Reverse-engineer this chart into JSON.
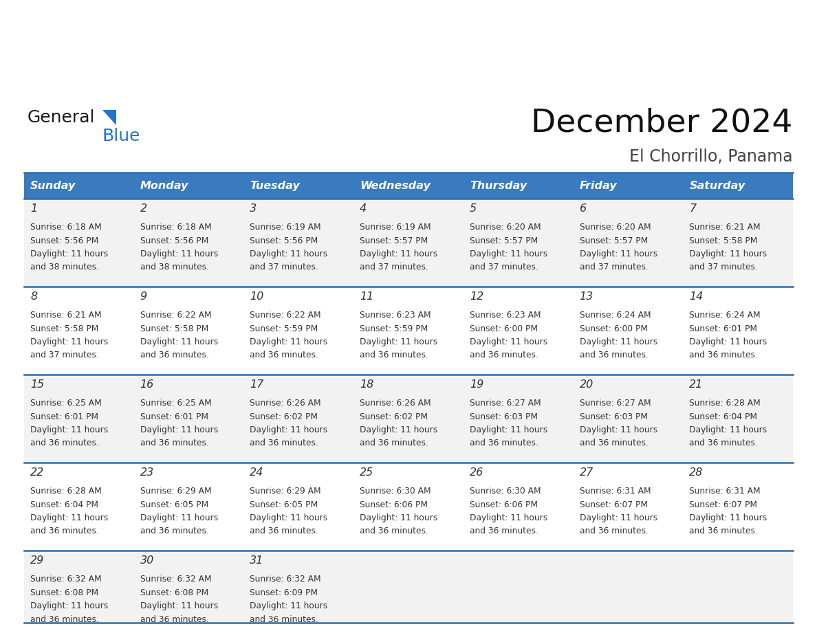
{
  "title": "December 2024",
  "subtitle": "El Chorrillo, Panama",
  "days_of_week": [
    "Sunday",
    "Monday",
    "Tuesday",
    "Wednesday",
    "Thursday",
    "Friday",
    "Saturday"
  ],
  "header_bg": "#3a7abf",
  "header_text": "#ffffff",
  "cell_bg_light": "#f2f2f2",
  "cell_bg_white": "#ffffff",
  "border_color": "#2e6da4",
  "text_color": "#333333",
  "logo_general_color": "#1a1a1a",
  "logo_blue_color": "#2176c7",
  "weeks": [
    [
      {
        "day": 1,
        "sunrise": "6:18 AM",
        "sunset": "5:56 PM",
        "daylight_h": "11 hours",
        "daylight_m": "and 38 minutes."
      },
      {
        "day": 2,
        "sunrise": "6:18 AM",
        "sunset": "5:56 PM",
        "daylight_h": "11 hours",
        "daylight_m": "and 38 minutes."
      },
      {
        "day": 3,
        "sunrise": "6:19 AM",
        "sunset": "5:56 PM",
        "daylight_h": "11 hours",
        "daylight_m": "and 37 minutes."
      },
      {
        "day": 4,
        "sunrise": "6:19 AM",
        "sunset": "5:57 PM",
        "daylight_h": "11 hours",
        "daylight_m": "and 37 minutes."
      },
      {
        "day": 5,
        "sunrise": "6:20 AM",
        "sunset": "5:57 PM",
        "daylight_h": "11 hours",
        "daylight_m": "and 37 minutes."
      },
      {
        "day": 6,
        "sunrise": "6:20 AM",
        "sunset": "5:57 PM",
        "daylight_h": "11 hours",
        "daylight_m": "and 37 minutes."
      },
      {
        "day": 7,
        "sunrise": "6:21 AM",
        "sunset": "5:58 PM",
        "daylight_h": "11 hours",
        "daylight_m": "and 37 minutes."
      }
    ],
    [
      {
        "day": 8,
        "sunrise": "6:21 AM",
        "sunset": "5:58 PM",
        "daylight_h": "11 hours",
        "daylight_m": "and 37 minutes."
      },
      {
        "day": 9,
        "sunrise": "6:22 AM",
        "sunset": "5:58 PM",
        "daylight_h": "11 hours",
        "daylight_m": "and 36 minutes."
      },
      {
        "day": 10,
        "sunrise": "6:22 AM",
        "sunset": "5:59 PM",
        "daylight_h": "11 hours",
        "daylight_m": "and 36 minutes."
      },
      {
        "day": 11,
        "sunrise": "6:23 AM",
        "sunset": "5:59 PM",
        "daylight_h": "11 hours",
        "daylight_m": "and 36 minutes."
      },
      {
        "day": 12,
        "sunrise": "6:23 AM",
        "sunset": "6:00 PM",
        "daylight_h": "11 hours",
        "daylight_m": "and 36 minutes."
      },
      {
        "day": 13,
        "sunrise": "6:24 AM",
        "sunset": "6:00 PM",
        "daylight_h": "11 hours",
        "daylight_m": "and 36 minutes."
      },
      {
        "day": 14,
        "sunrise": "6:24 AM",
        "sunset": "6:01 PM",
        "daylight_h": "11 hours",
        "daylight_m": "and 36 minutes."
      }
    ],
    [
      {
        "day": 15,
        "sunrise": "6:25 AM",
        "sunset": "6:01 PM",
        "daylight_h": "11 hours",
        "daylight_m": "and 36 minutes."
      },
      {
        "day": 16,
        "sunrise": "6:25 AM",
        "sunset": "6:01 PM",
        "daylight_h": "11 hours",
        "daylight_m": "and 36 minutes."
      },
      {
        "day": 17,
        "sunrise": "6:26 AM",
        "sunset": "6:02 PM",
        "daylight_h": "11 hours",
        "daylight_m": "and 36 minutes."
      },
      {
        "day": 18,
        "sunrise": "6:26 AM",
        "sunset": "6:02 PM",
        "daylight_h": "11 hours",
        "daylight_m": "and 36 minutes."
      },
      {
        "day": 19,
        "sunrise": "6:27 AM",
        "sunset": "6:03 PM",
        "daylight_h": "11 hours",
        "daylight_m": "and 36 minutes."
      },
      {
        "day": 20,
        "sunrise": "6:27 AM",
        "sunset": "6:03 PM",
        "daylight_h": "11 hours",
        "daylight_m": "and 36 minutes."
      },
      {
        "day": 21,
        "sunrise": "6:28 AM",
        "sunset": "6:04 PM",
        "daylight_h": "11 hours",
        "daylight_m": "and 36 minutes."
      }
    ],
    [
      {
        "day": 22,
        "sunrise": "6:28 AM",
        "sunset": "6:04 PM",
        "daylight_h": "11 hours",
        "daylight_m": "and 36 minutes."
      },
      {
        "day": 23,
        "sunrise": "6:29 AM",
        "sunset": "6:05 PM",
        "daylight_h": "11 hours",
        "daylight_m": "and 36 minutes."
      },
      {
        "day": 24,
        "sunrise": "6:29 AM",
        "sunset": "6:05 PM",
        "daylight_h": "11 hours",
        "daylight_m": "and 36 minutes."
      },
      {
        "day": 25,
        "sunrise": "6:30 AM",
        "sunset": "6:06 PM",
        "daylight_h": "11 hours",
        "daylight_m": "and 36 minutes."
      },
      {
        "day": 26,
        "sunrise": "6:30 AM",
        "sunset": "6:06 PM",
        "daylight_h": "11 hours",
        "daylight_m": "and 36 minutes."
      },
      {
        "day": 27,
        "sunrise": "6:31 AM",
        "sunset": "6:07 PM",
        "daylight_h": "11 hours",
        "daylight_m": "and 36 minutes."
      },
      {
        "day": 28,
        "sunrise": "6:31 AM",
        "sunset": "6:07 PM",
        "daylight_h": "11 hours",
        "daylight_m": "and 36 minutes."
      }
    ],
    [
      {
        "day": 29,
        "sunrise": "6:32 AM",
        "sunset": "6:08 PM",
        "daylight_h": "11 hours",
        "daylight_m": "and 36 minutes."
      },
      {
        "day": 30,
        "sunrise": "6:32 AM",
        "sunset": "6:08 PM",
        "daylight_h": "11 hours",
        "daylight_m": "and 36 minutes."
      },
      {
        "day": 31,
        "sunrise": "6:32 AM",
        "sunset": "6:09 PM",
        "daylight_h": "11 hours",
        "daylight_m": "and 36 minutes."
      },
      null,
      null,
      null,
      null
    ]
  ],
  "figsize": [
    11.88,
    9.18
  ],
  "dpi": 100
}
